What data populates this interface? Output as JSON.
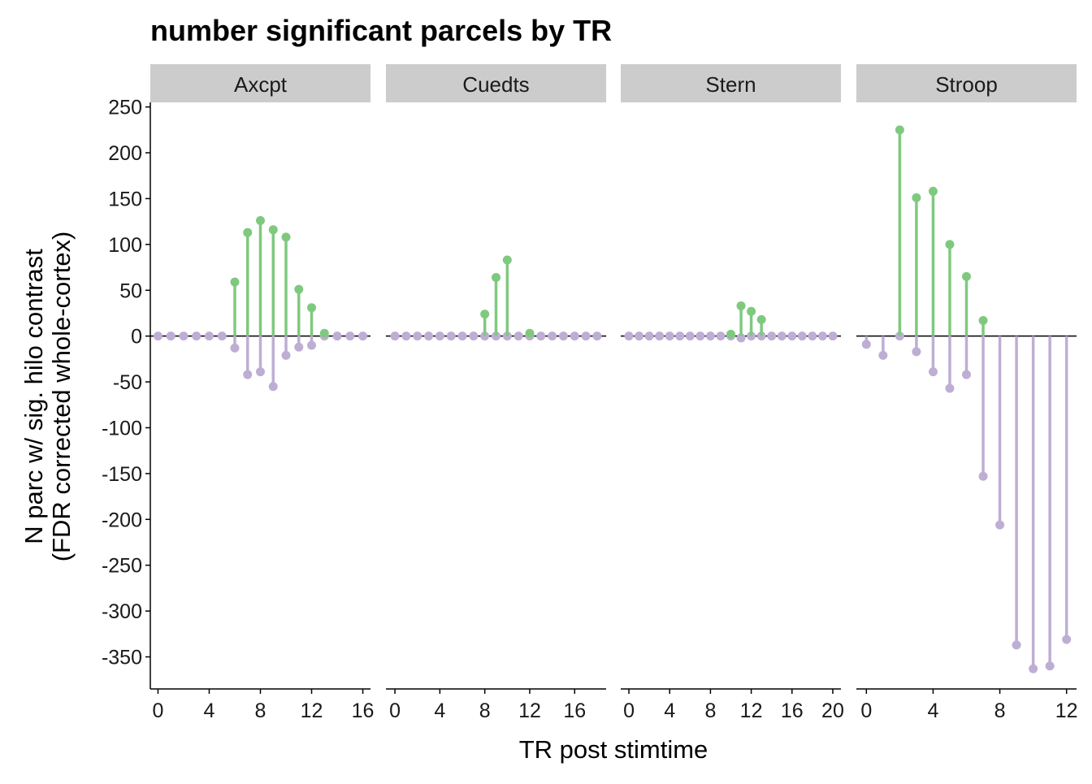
{
  "chart_data": {
    "type": "lollipop",
    "title": "number significant parcels by TR",
    "xlabel": "TR post stimtime",
    "ylabel_line1": "N parc w/ sig. hilo contrast",
    "ylabel_line2": "(FDR corrected whole-cortex)",
    "ylim": [
      -385,
      255
    ],
    "yticks": [
      250,
      200,
      150,
      100,
      50,
      0,
      -50,
      -100,
      -150,
      -200,
      -250,
      -300,
      -350
    ],
    "colors": {
      "positive": "#7fc97f",
      "negative": "#beaed4",
      "strip_bg": "#cccccc",
      "axis": "#000000"
    },
    "facets": [
      {
        "name": "Axcpt",
        "xlim": [
          -0.6,
          16.6
        ],
        "xticks": [
          0,
          4,
          8,
          12,
          16
        ],
        "x": [
          0,
          1,
          2,
          3,
          4,
          5,
          6,
          7,
          8,
          9,
          10,
          11,
          12,
          13,
          14,
          15,
          16
        ],
        "positive": [
          0,
          0,
          0,
          0,
          0,
          0,
          59,
          113,
          126,
          116,
          108,
          51,
          31,
          3,
          0,
          0,
          0
        ],
        "negative": [
          0,
          0,
          0,
          0,
          0,
          0,
          -13,
          -42,
          -39,
          -55,
          -21,
          -12,
          -10,
          0,
          0,
          0,
          0
        ]
      },
      {
        "name": "Cuedts",
        "xlim": [
          -0.8,
          18.8
        ],
        "xticks": [
          0,
          4,
          8,
          12,
          16
        ],
        "x": [
          0,
          1,
          2,
          3,
          4,
          5,
          6,
          7,
          8,
          9,
          10,
          11,
          12,
          13,
          14,
          15,
          16,
          17,
          18
        ],
        "positive": [
          0,
          0,
          0,
          0,
          0,
          0,
          0,
          0,
          24,
          64,
          83,
          0,
          3,
          0,
          0,
          0,
          0,
          0,
          0
        ],
        "negative": [
          0,
          0,
          0,
          0,
          0,
          0,
          0,
          0,
          0,
          0,
          0,
          0,
          0,
          0,
          0,
          0,
          0,
          0,
          0
        ]
      },
      {
        "name": "Stern",
        "xlim": [
          -0.8,
          20.8
        ],
        "xticks": [
          0,
          4,
          8,
          12,
          16,
          20
        ],
        "x": [
          0,
          1,
          2,
          3,
          4,
          5,
          6,
          7,
          8,
          9,
          10,
          11,
          12,
          13,
          14,
          15,
          16,
          17,
          18,
          19,
          20
        ],
        "positive": [
          0,
          0,
          0,
          0,
          0,
          0,
          0,
          0,
          0,
          0,
          2,
          33,
          27,
          18,
          0,
          0,
          0,
          0,
          0,
          0,
          0
        ],
        "negative": [
          0,
          0,
          0,
          0,
          0,
          0,
          0,
          0,
          0,
          0,
          0,
          -2,
          0,
          0,
          0,
          0,
          0,
          0,
          0,
          0,
          0
        ]
      },
      {
        "name": "Stroop",
        "xlim": [
          -0.6,
          12.6
        ],
        "xticks": [
          0,
          4,
          8,
          12
        ],
        "x": [
          0,
          1,
          2,
          3,
          4,
          5,
          6,
          7,
          8,
          9,
          10,
          11,
          12
        ],
        "positive": [
          0,
          0,
          225,
          151,
          158,
          100,
          65,
          17,
          0,
          0,
          0,
          0,
          0
        ],
        "negative": [
          -9,
          -21,
          0,
          -17,
          -39,
          -57,
          -42,
          -153,
          -206,
          -337,
          -363,
          -360,
          -331
        ]
      }
    ]
  }
}
